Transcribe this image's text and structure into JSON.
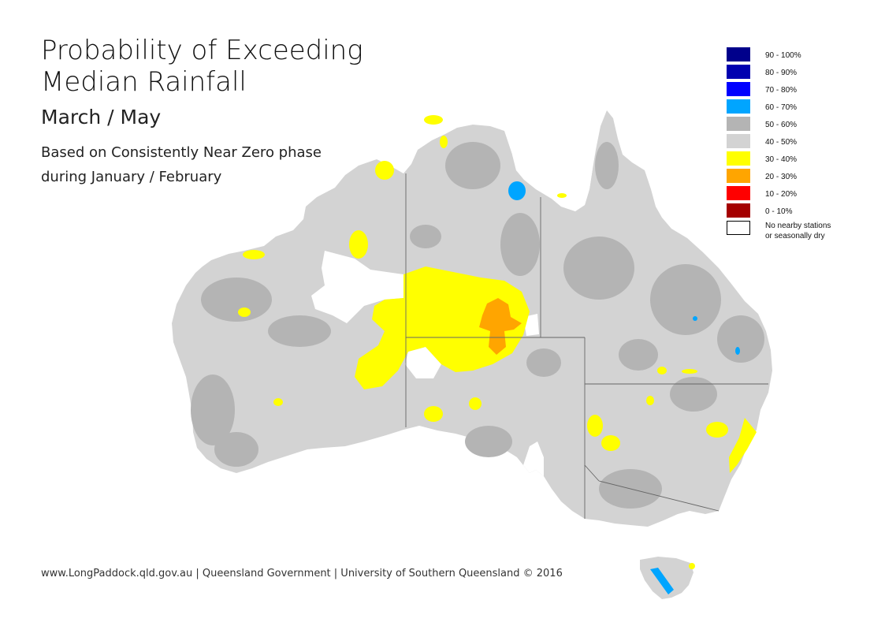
{
  "title": {
    "line1": "Probability of Exceeding",
    "line2": "Median Rainfall"
  },
  "subtitle": "March / May",
  "note": {
    "line1": "Based on Consistently Near Zero phase",
    "line2": "during January / February"
  },
  "footer": "www.LongPaddock.qld.gov.au | Queensland Government | University of Southern Queensland © 2016",
  "legend": [
    {
      "label": "90 - 100%",
      "color": "#00008B"
    },
    {
      "label": "80 - 90%",
      "color": "#0000B0"
    },
    {
      "label": "70 - 80%",
      "color": "#0000FF"
    },
    {
      "label": "60 - 70%",
      "color": "#00A5FF"
    },
    {
      "label": "50 - 60%",
      "color": "#B4B4B4"
    },
    {
      "label": "40 - 50%",
      "color": "#D3D3D3"
    },
    {
      "label": "30 - 40%",
      "color": "#FFFF00"
    },
    {
      "label": "20 - 30%",
      "color": "#FFA500"
    },
    {
      "label": "10 - 20%",
      "color": "#FF0000"
    },
    {
      "label": "0 - 10%",
      "color": "#A50000"
    },
    {
      "label": "No nearby stations\nor seasonally dry",
      "color": "#FFFFFF"
    }
  ],
  "map_regions": {
    "base": "40 - 50%",
    "patches": [
      "50 - 60%",
      "30 - 40%",
      "20 - 30%",
      "60 - 70%",
      "No nearby stations or seasonally dry"
    ]
  }
}
